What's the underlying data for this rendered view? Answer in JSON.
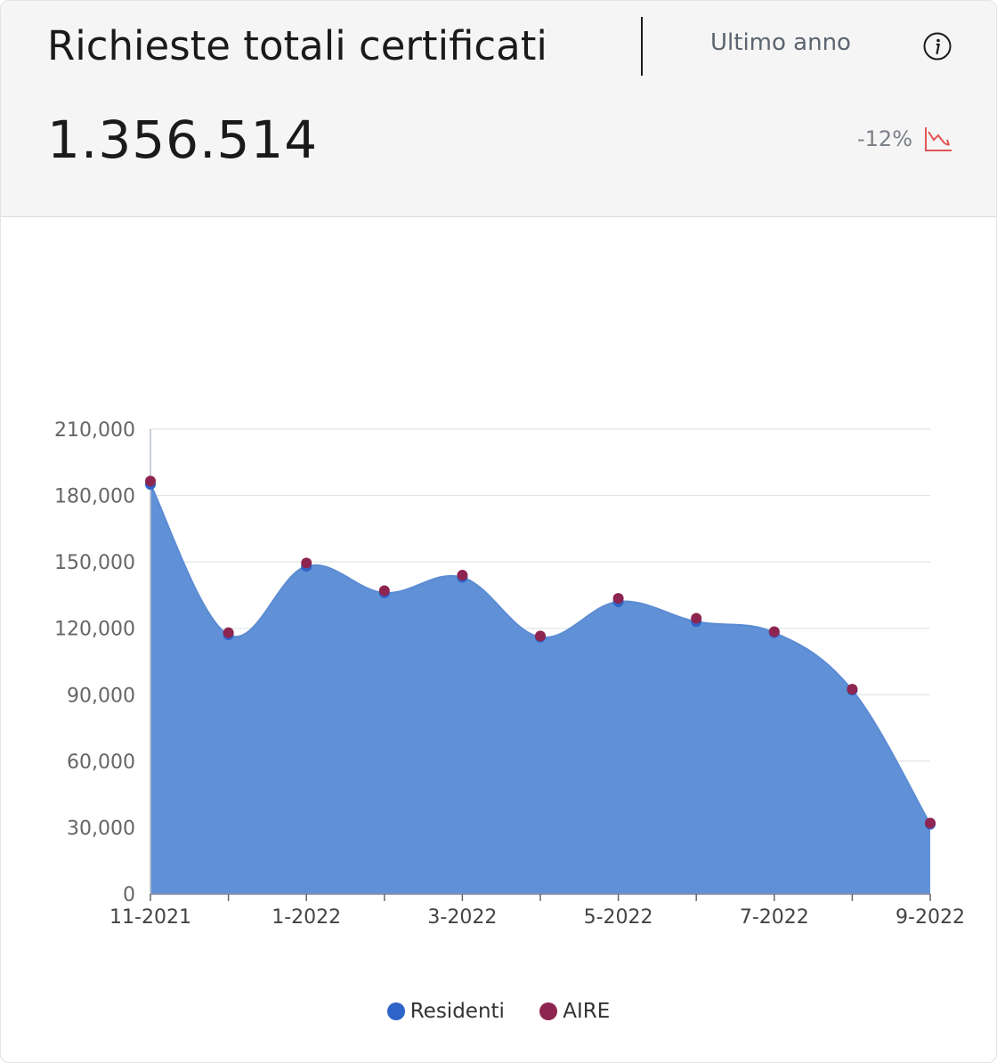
{
  "header": {
    "title": "Richieste totali certificati",
    "period": "Ultimo anno",
    "total": "1.356.514",
    "delta": "-12%"
  },
  "icons": {
    "info": "info-icon",
    "trend": "trend-down-icon"
  },
  "colors": {
    "residenti": "#2e64c8",
    "aire": "#8e2450",
    "area_fill": "#6090d6",
    "trend": "#e05555"
  },
  "chart_data": {
    "type": "area",
    "x": [
      "11-2021",
      "12-2021",
      "1-2022",
      "2-2022",
      "3-2022",
      "4-2022",
      "5-2022",
      "6-2022",
      "7-2022",
      "8-2022",
      "9-2022"
    ],
    "xtick_labels": [
      "11-2021",
      "",
      "1-2022",
      "",
      "3-2022",
      "",
      "5-2022",
      "",
      "7-2022",
      "",
      "9-2022"
    ],
    "ylim": [
      0,
      210000
    ],
    "yticks": [
      0,
      30000,
      60000,
      90000,
      120000,
      150000,
      180000,
      210000
    ],
    "ytick_labels": [
      "0",
      "30,000",
      "60,000",
      "90,000",
      "120,000",
      "150,000",
      "180,000",
      "210,000"
    ],
    "grid": true,
    "legend": "bottom-center",
    "series": [
      {
        "name": "Residenti",
        "values": [
          185000,
          117000,
          148000,
          136000,
          143000,
          116000,
          132000,
          123000,
          118000,
          92000,
          31500
        ]
      },
      {
        "name": "AIRE",
        "values": [
          186500,
          118000,
          149500,
          137000,
          144000,
          116500,
          133500,
          124500,
          118500,
          92500,
          32000
        ]
      }
    ]
  }
}
